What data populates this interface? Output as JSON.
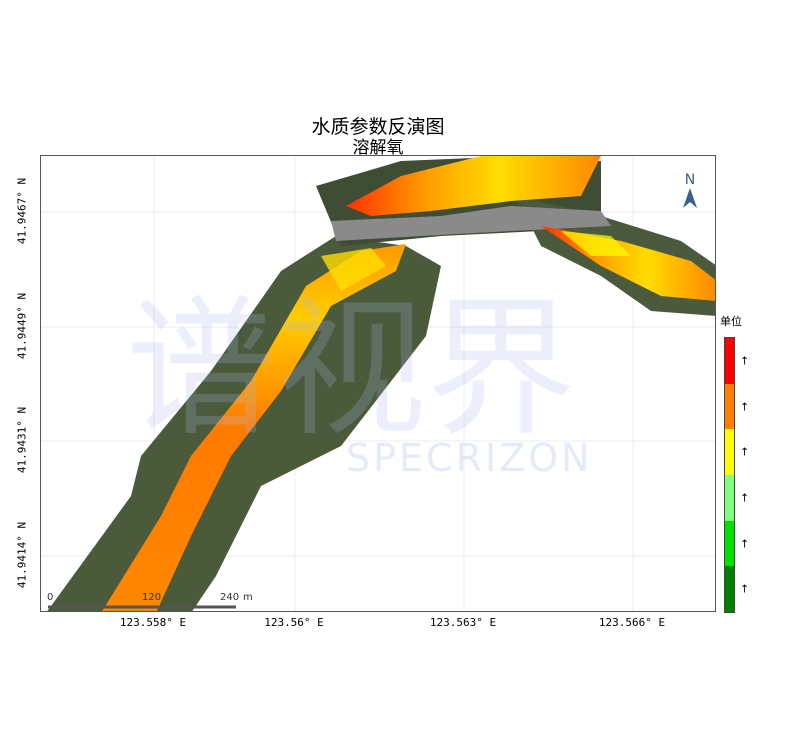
{
  "title": "水质参数反演图",
  "subtitle": "溶解氧",
  "x_ticks": [
    "123.558° E",
    "123.56° E",
    "123.563° E",
    "123.566° E"
  ],
  "y_ticks": [
    "41.9467° N",
    "41.9449° N",
    "41.9431° N",
    "41.9414° N"
  ],
  "north_label": "N",
  "scale_bar": {
    "labels": [
      "0",
      "120",
      "240"
    ],
    "unit": "m"
  },
  "watermark": "SPECRIZON",
  "legend": {
    "title": "单位",
    "colors": [
      "#ff0000",
      "#ff7f00",
      "#ffff00",
      "#80ff80",
      "#00e000",
      "#007f00"
    ],
    "labels": [
      "↑",
      "↑",
      "↑",
      "↑",
      "↑",
      "↑"
    ]
  }
}
